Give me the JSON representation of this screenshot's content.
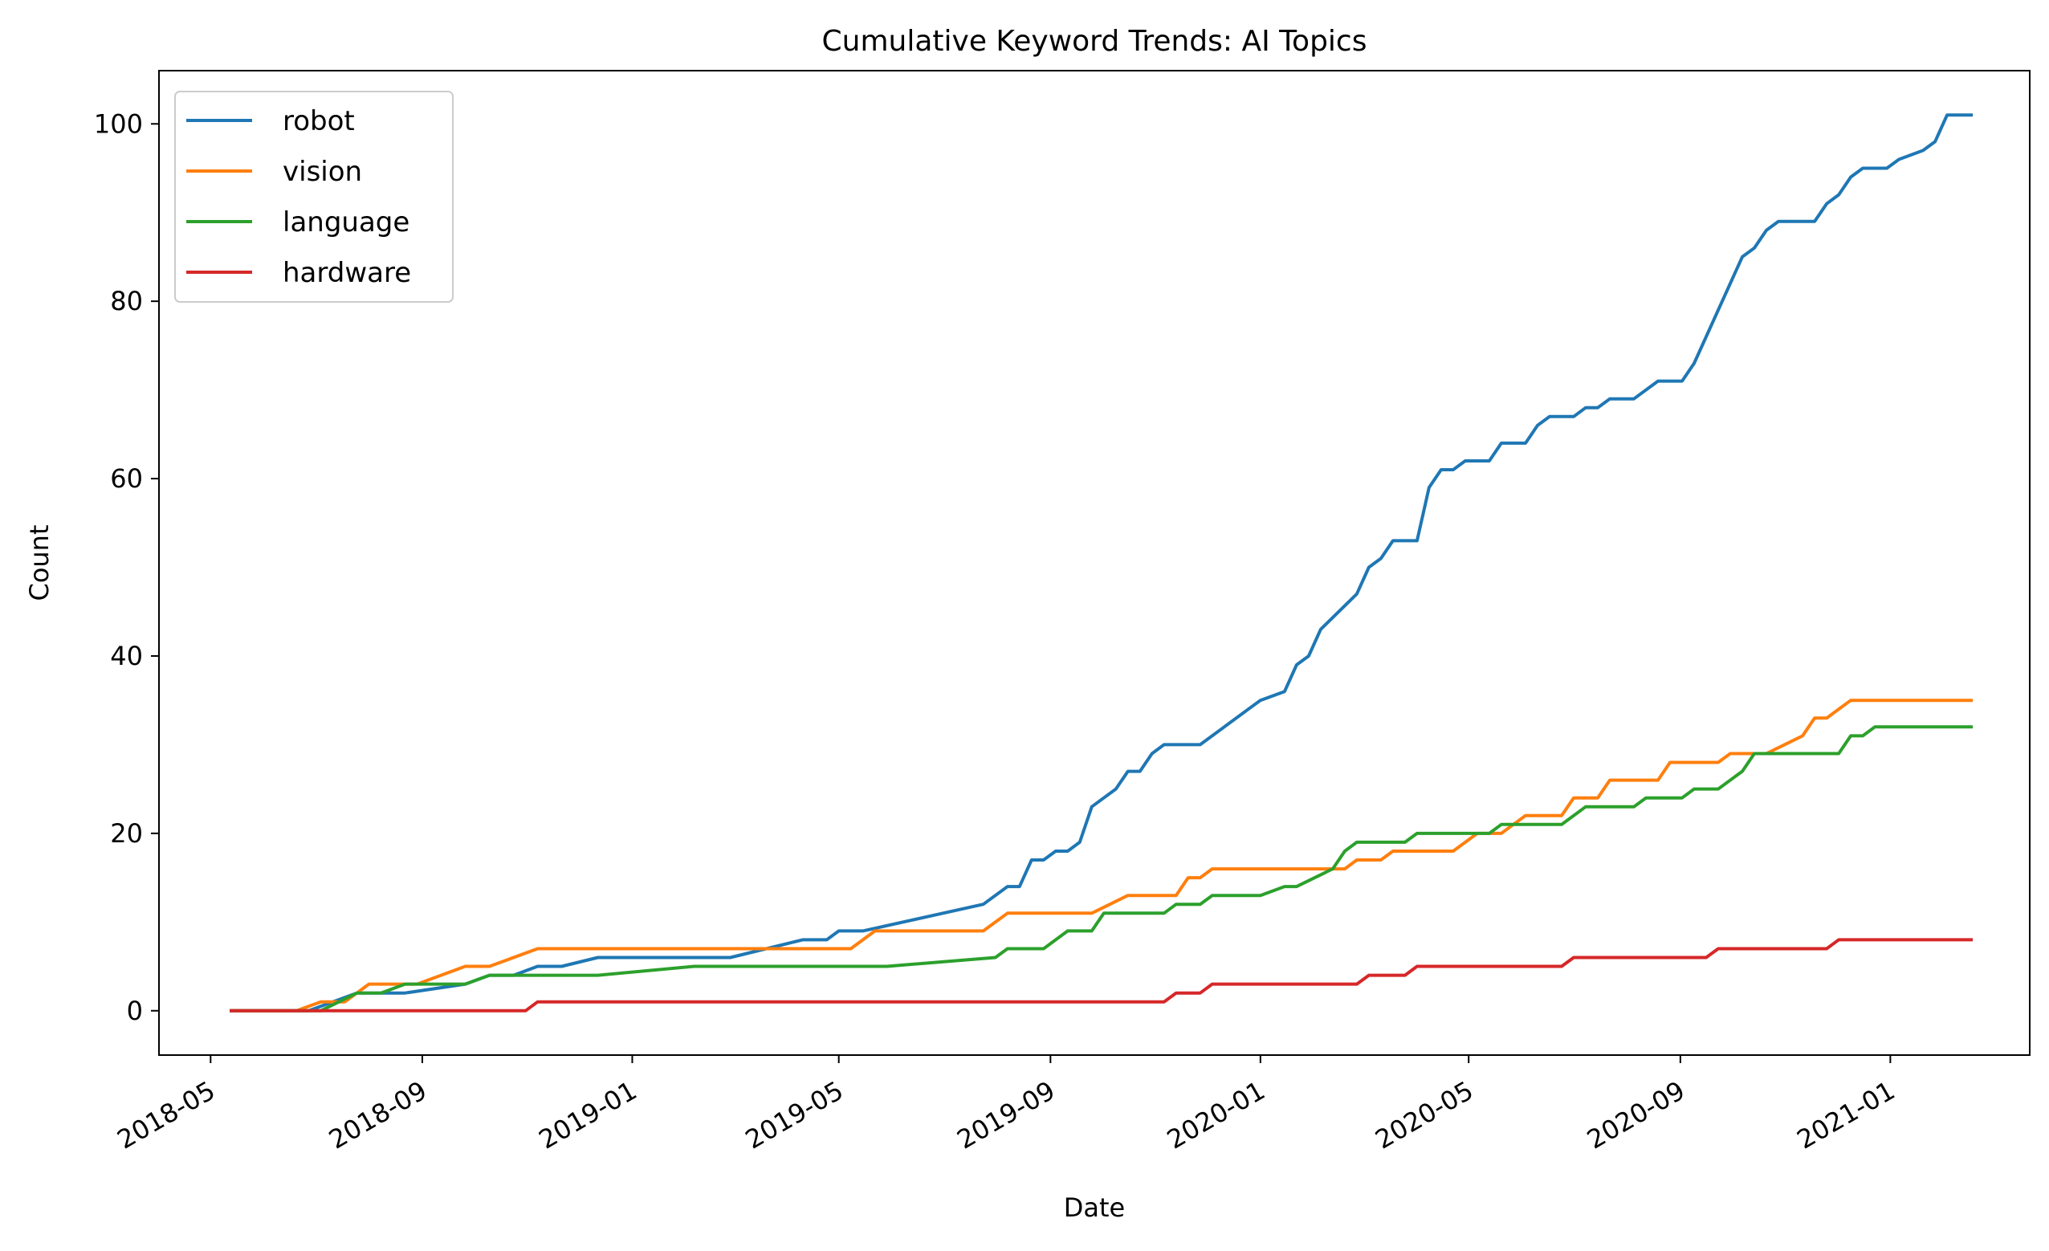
{
  "chart_data": {
    "type": "line",
    "title": "Cumulative Keyword Trends: AI Topics",
    "xlabel": "Date",
    "ylabel": "Count",
    "xlim": [
      "2018-04-01",
      "2021-03-23"
    ],
    "ylim": [
      -5,
      106
    ],
    "grid": false,
    "legend_position": "top-left",
    "x_tick_labels": [
      "2018-05",
      "2018-09",
      "2019-01",
      "2019-05",
      "2019-09",
      "2020-01",
      "2020-05",
      "2020-09",
      "2021-01"
    ],
    "x_tick_dates": [
      "2018-05-01",
      "2018-09-01",
      "2019-01-01",
      "2019-05-01",
      "2019-09-01",
      "2020-01-01",
      "2020-05-01",
      "2020-09-01",
      "2021-01-01"
    ],
    "y_ticks": [
      0,
      20,
      40,
      60,
      80,
      100
    ],
    "series": [
      {
        "name": "robot",
        "color": "#1f77b4",
        "points": [
          [
            "2018-05-13",
            0
          ],
          [
            "2018-06-27",
            0
          ],
          [
            "2018-07-25",
            2
          ],
          [
            "2018-08-22",
            2
          ],
          [
            "2018-09-26",
            3
          ],
          [
            "2018-10-10",
            4
          ],
          [
            "2018-10-24",
            4
          ],
          [
            "2018-11-07",
            5
          ],
          [
            "2018-11-21",
            5
          ],
          [
            "2018-12-12",
            6
          ],
          [
            "2019-02-27",
            6
          ],
          [
            "2019-04-10",
            8
          ],
          [
            "2019-04-24",
            8
          ],
          [
            "2019-05-01",
            9
          ],
          [
            "2019-05-15",
            9
          ],
          [
            "2019-07-24",
            12
          ],
          [
            "2019-08-07",
            14
          ],
          [
            "2019-08-14",
            14
          ],
          [
            "2019-08-21",
            17
          ],
          [
            "2019-08-28",
            17
          ],
          [
            "2019-09-04",
            18
          ],
          [
            "2019-09-11",
            18
          ],
          [
            "2019-09-18",
            19
          ],
          [
            "2019-09-25",
            23
          ],
          [
            "2019-10-09",
            25
          ],
          [
            "2019-10-16",
            27
          ],
          [
            "2019-10-23",
            27
          ],
          [
            "2019-10-30",
            29
          ],
          [
            "2019-11-06",
            30
          ],
          [
            "2019-11-27",
            30
          ],
          [
            "2019-12-11",
            32
          ],
          [
            "2019-12-25",
            34
          ],
          [
            "2020-01-01",
            35
          ],
          [
            "2020-01-15",
            36
          ],
          [
            "2020-01-22",
            39
          ],
          [
            "2020-01-29",
            40
          ],
          [
            "2020-02-05",
            43
          ],
          [
            "2020-02-26",
            47
          ],
          [
            "2020-03-04",
            50
          ],
          [
            "2020-03-11",
            51
          ],
          [
            "2020-03-18",
            53
          ],
          [
            "2020-04-01",
            53
          ],
          [
            "2020-04-08",
            59
          ],
          [
            "2020-04-15",
            61
          ],
          [
            "2020-04-22",
            61
          ],
          [
            "2020-04-29",
            62
          ],
          [
            "2020-05-13",
            62
          ],
          [
            "2020-05-20",
            64
          ],
          [
            "2020-06-03",
            64
          ],
          [
            "2020-06-10",
            66
          ],
          [
            "2020-06-17",
            67
          ],
          [
            "2020-07-01",
            67
          ],
          [
            "2020-07-08",
            68
          ],
          [
            "2020-07-15",
            68
          ],
          [
            "2020-07-22",
            69
          ],
          [
            "2020-08-05",
            69
          ],
          [
            "2020-08-19",
            71
          ],
          [
            "2020-09-02",
            71
          ],
          [
            "2020-09-09",
            73
          ],
          [
            "2020-10-07",
            85
          ],
          [
            "2020-10-14",
            86
          ],
          [
            "2020-10-21",
            88
          ],
          [
            "2020-10-28",
            89
          ],
          [
            "2020-11-18",
            89
          ],
          [
            "2020-11-25",
            91
          ],
          [
            "2020-12-02",
            92
          ],
          [
            "2020-12-09",
            94
          ],
          [
            "2020-12-16",
            95
          ],
          [
            "2020-12-30",
            95
          ],
          [
            "2021-01-06",
            96
          ],
          [
            "2021-01-20",
            97
          ],
          [
            "2021-01-27",
            98
          ],
          [
            "2021-02-03",
            101
          ],
          [
            "2021-02-17",
            101
          ]
        ]
      },
      {
        "name": "vision",
        "color": "#ff7f0e",
        "points": [
          [
            "2018-05-13",
            0
          ],
          [
            "2018-06-20",
            0
          ],
          [
            "2018-07-04",
            1
          ],
          [
            "2018-07-18",
            1
          ],
          [
            "2018-08-01",
            3
          ],
          [
            "2018-08-29",
            3
          ],
          [
            "2018-09-26",
            5
          ],
          [
            "2018-10-10",
            5
          ],
          [
            "2018-11-07",
            7
          ],
          [
            "2019-05-08",
            7
          ],
          [
            "2019-05-22",
            9
          ],
          [
            "2019-07-24",
            9
          ],
          [
            "2019-08-07",
            11
          ],
          [
            "2019-09-25",
            11
          ],
          [
            "2019-10-16",
            13
          ],
          [
            "2019-11-13",
            13
          ],
          [
            "2019-11-20",
            15
          ],
          [
            "2019-11-27",
            15
          ],
          [
            "2019-12-04",
            16
          ],
          [
            "2020-02-19",
            16
          ],
          [
            "2020-02-26",
            17
          ],
          [
            "2020-03-11",
            17
          ],
          [
            "2020-03-18",
            18
          ],
          [
            "2020-04-22",
            18
          ],
          [
            "2020-05-06",
            20
          ],
          [
            "2020-05-20",
            20
          ],
          [
            "2020-05-27",
            21
          ],
          [
            "2020-06-03",
            22
          ],
          [
            "2020-06-24",
            22
          ],
          [
            "2020-07-01",
            24
          ],
          [
            "2020-07-15",
            24
          ],
          [
            "2020-07-22",
            26
          ],
          [
            "2020-08-19",
            26
          ],
          [
            "2020-08-26",
            28
          ],
          [
            "2020-09-23",
            28
          ],
          [
            "2020-09-30",
            29
          ],
          [
            "2020-10-21",
            29
          ],
          [
            "2020-11-11",
            31
          ],
          [
            "2020-11-18",
            33
          ],
          [
            "2020-11-25",
            33
          ],
          [
            "2020-12-09",
            35
          ],
          [
            "2021-02-17",
            35
          ]
        ]
      },
      {
        "name": "language",
        "color": "#2ca02c",
        "points": [
          [
            "2018-05-13",
            0
          ],
          [
            "2018-07-04",
            0
          ],
          [
            "2018-07-25",
            2
          ],
          [
            "2018-08-08",
            2
          ],
          [
            "2018-08-22",
            3
          ],
          [
            "2018-09-26",
            3
          ],
          [
            "2018-10-10",
            4
          ],
          [
            "2018-12-12",
            4
          ],
          [
            "2019-02-06",
            5
          ],
          [
            "2019-05-29",
            5
          ],
          [
            "2019-07-31",
            6
          ],
          [
            "2019-08-07",
            7
          ],
          [
            "2019-08-28",
            7
          ],
          [
            "2019-09-11",
            9
          ],
          [
            "2019-09-25",
            9
          ],
          [
            "2019-10-02",
            11
          ],
          [
            "2019-11-06",
            11
          ],
          [
            "2019-11-13",
            12
          ],
          [
            "2019-11-27",
            12
          ],
          [
            "2019-12-04",
            13
          ],
          [
            "2020-01-01",
            13
          ],
          [
            "2020-01-15",
            14
          ],
          [
            "2020-01-22",
            14
          ],
          [
            "2020-02-12",
            16
          ],
          [
            "2020-02-19",
            18
          ],
          [
            "2020-02-26",
            19
          ],
          [
            "2020-03-25",
            19
          ],
          [
            "2020-04-01",
            20
          ],
          [
            "2020-05-13",
            20
          ],
          [
            "2020-05-20",
            21
          ],
          [
            "2020-06-24",
            21
          ],
          [
            "2020-07-08",
            23
          ],
          [
            "2020-08-05",
            23
          ],
          [
            "2020-08-12",
            24
          ],
          [
            "2020-09-02",
            24
          ],
          [
            "2020-09-09",
            25
          ],
          [
            "2020-09-23",
            25
          ],
          [
            "2020-10-07",
            27
          ],
          [
            "2020-10-14",
            29
          ],
          [
            "2020-12-02",
            29
          ],
          [
            "2020-12-09",
            31
          ],
          [
            "2020-12-16",
            31
          ],
          [
            "2020-12-23",
            32
          ],
          [
            "2021-02-17",
            32
          ]
        ]
      },
      {
        "name": "hardware",
        "color": "#d62728",
        "points": [
          [
            "2018-05-13",
            0
          ],
          [
            "2018-10-31",
            0
          ],
          [
            "2018-11-07",
            1
          ],
          [
            "2019-11-06",
            1
          ],
          [
            "2019-11-13",
            2
          ],
          [
            "2019-11-27",
            2
          ],
          [
            "2019-12-04",
            3
          ],
          [
            "2020-02-26",
            3
          ],
          [
            "2020-03-04",
            4
          ],
          [
            "2020-03-25",
            4
          ],
          [
            "2020-04-01",
            5
          ],
          [
            "2020-06-24",
            5
          ],
          [
            "2020-07-01",
            6
          ],
          [
            "2020-09-16",
            6
          ],
          [
            "2020-09-23",
            7
          ],
          [
            "2020-11-25",
            7
          ],
          [
            "2020-12-02",
            8
          ],
          [
            "2021-02-17",
            8
          ]
        ]
      }
    ]
  }
}
